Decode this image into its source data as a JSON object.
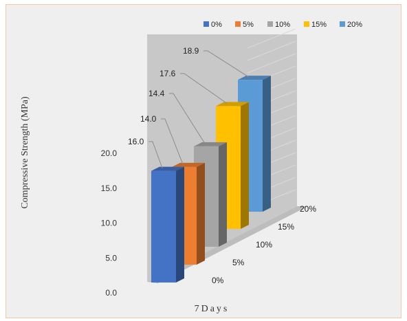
{
  "chart_data": {
    "type": "bar",
    "title": "",
    "xlabel": "7Days",
    "ylabel": "Compressive Strength (MPa)",
    "ylim": [
      0,
      20
    ],
    "yticks": [
      "0.0",
      "5.0",
      "10.0",
      "15.0",
      "20.0"
    ],
    "categories": [
      "7Days"
    ],
    "series": [
      {
        "name": "0%",
        "values": [
          16.0
        ],
        "label": "16.0",
        "color": "#4472c4"
      },
      {
        "name": "5%",
        "values": [
          14.0
        ],
        "label": "14.0",
        "color": "#ed7d31"
      },
      {
        "name": "10%",
        "values": [
          14.4
        ],
        "label": "14.4",
        "color": "#a5a5a5"
      },
      {
        "name": "15%",
        "values": [
          17.6
        ],
        "label": "17.6",
        "color": "#ffc000"
      },
      {
        "name": "20%",
        "values": [
          18.9
        ],
        "label": "18.9",
        "color": "#5b9bd5"
      }
    ],
    "legend": "top-right",
    "grid": false,
    "style": "3d-column"
  }
}
